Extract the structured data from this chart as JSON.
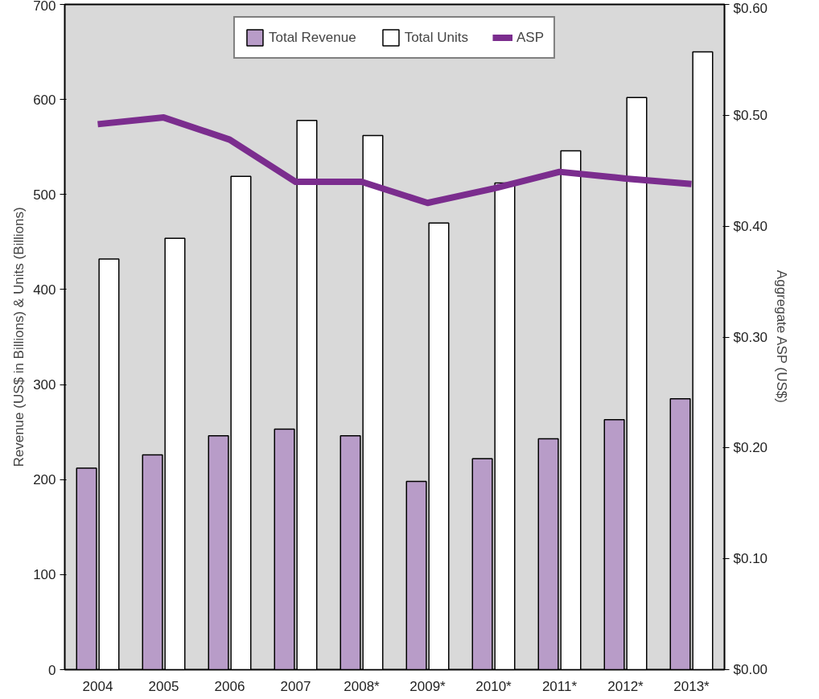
{
  "chart_data": {
    "type": "bar",
    "categories": [
      "2004",
      "2005",
      "2006",
      "2007",
      "2008*",
      "2009*",
      "2010*",
      "2011*",
      "2012*",
      "2013*"
    ],
    "ylabel": "Revenue (US$ in Billions) & Units (Billions)",
    "y2label": "Aggregate ASP (US$)",
    "ylim": [
      0,
      700
    ],
    "yticks": [
      0,
      100,
      200,
      300,
      400,
      500,
      600,
      700
    ],
    "y2lim": [
      0,
      0.6
    ],
    "y2ticks": [
      {
        "value": 0,
        "label": "$0.00"
      },
      {
        "value": 0.1,
        "label": "$0.10"
      },
      {
        "value": 0.2,
        "label": "$0.20"
      },
      {
        "value": 0.3,
        "label": "$0.30"
      },
      {
        "value": 0.4,
        "label": "$0.40"
      },
      {
        "value": 0.5,
        "label": "$0.50"
      },
      {
        "value": 0.6,
        "label": "$0.60"
      }
    ],
    "legend": "top",
    "grid": false,
    "series": [
      {
        "name": "Total Revenue",
        "color": "#b89cc8",
        "values": [
          212,
          226,
          246,
          253,
          246,
          198,
          222,
          243,
          263,
          285
        ]
      },
      {
        "name": "Total Units",
        "color": "#ffffff",
        "values": [
          432,
          454,
          519,
          578,
          562,
          470,
          512,
          546,
          602,
          650
        ]
      },
      {
        "name": "ASP",
        "type": "line",
        "axis": "y2",
        "color": "#7b2d8e",
        "values": [
          0.492,
          0.498,
          0.478,
          0.44,
          0.44,
          0.421,
          0.434,
          0.449,
          0.443,
          0.438
        ]
      }
    ]
  }
}
